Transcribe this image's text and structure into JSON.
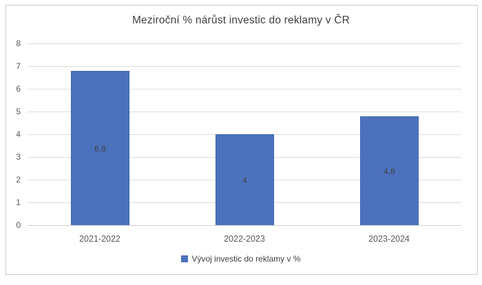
{
  "chart_data": {
    "type": "bar",
    "title": "Meziroční % nárůst investic do reklamy v ČR",
    "categories": [
      "2021-2022",
      "2022-2023",
      "2023-2024"
    ],
    "values": [
      6.8,
      4,
      4.8
    ],
    "data_labels": [
      "6,8",
      "4",
      "4,8"
    ],
    "series": [
      {
        "name": "Vývoj investic do reklamy v %",
        "values": [
          6.8,
          4,
          4.8
        ]
      }
    ],
    "xlabel": "",
    "ylabel": "",
    "ylim": [
      0,
      8
    ],
    "ytick_interval": 1,
    "ytick_labels": [
      "0",
      "1",
      "2",
      "3",
      "4",
      "5",
      "6",
      "7",
      "8"
    ],
    "grid": true,
    "legend": [
      "Vývoj investic do reklamy v %"
    ],
    "legend_position": "bottom",
    "colors": {
      "bar_fill": "#4c72be",
      "bar_border": "#3c64ae",
      "gridline": "#dcdcdc",
      "frame_border": "#c9c9c9",
      "title_text": "#404040",
      "tick_text": "#595959",
      "data_label_text": "#404040"
    }
  }
}
